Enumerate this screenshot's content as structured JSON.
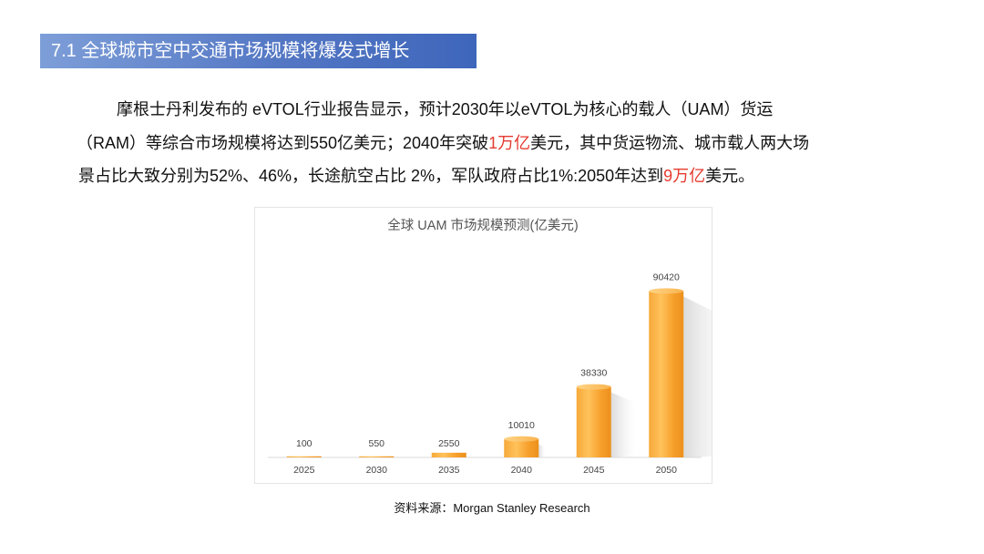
{
  "header": {
    "title": "7.1 全球城市空中交通市场规模将爆发式增长"
  },
  "paragraph": {
    "line1": "摩根士丹利发布的 eVTOL行业报告显示，预计2030年以eVTOL为核心的载人（UAM）货运",
    "line2_a": "（RAM）等综合市场规模将达到550亿美元；2040年突破",
    "line2_red": "1万亿",
    "line2_b": "美元，其中货运物流、城市载人两大场",
    "line3_a": "景占比大致分别为52%、46%，长途航空占比 2%，军队政府占比1%:2050年达到",
    "line3_red": "9万亿",
    "line3_b": "美元。"
  },
  "colors": {
    "accent_red": "#e53a2f",
    "bar": "#f7a531",
    "title_bar": "#4a70c2"
  },
  "chart_data": {
    "type": "bar",
    "title": "全球 UAM 市场规模预测(亿美元)",
    "categories": [
      "2025",
      "2030",
      "2035",
      "2040",
      "2045",
      "2050"
    ],
    "values": [
      100,
      550,
      2550,
      10010,
      38330,
      90420
    ],
    "ylim": [
      0,
      100000
    ],
    "grid": false,
    "legend": "none",
    "xlabel": "",
    "ylabel": ""
  },
  "source": "资料来源：Morgan Stanley Research"
}
